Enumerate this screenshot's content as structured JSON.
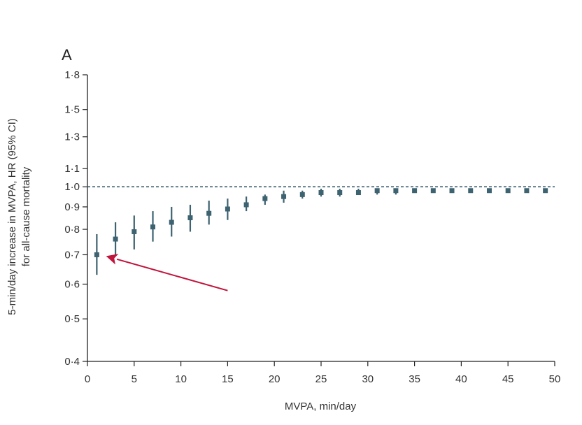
{
  "chart_data": {
    "type": "scatter",
    "panel_label": "A",
    "title": "",
    "xlabel": "MVPA, min/day",
    "ylabel_lines": [
      "5-min/day increase in MVPA, HR (95% CI)",
      "for all-cause mortality"
    ],
    "y_scale": "log",
    "xlim": [
      0,
      50
    ],
    "ylim": [
      0.4,
      1.8
    ],
    "x_ticks": [
      0,
      5,
      10,
      15,
      20,
      25,
      30,
      35,
      40,
      45,
      50
    ],
    "x_tick_labels": [
      "0",
      "5",
      "10",
      "15",
      "20",
      "25",
      "30",
      "35",
      "40",
      "45",
      "50"
    ],
    "y_ticks": [
      0.4,
      0.5,
      0.6,
      0.7,
      0.8,
      0.9,
      1.0,
      1.1,
      1.3,
      1.5,
      1.8
    ],
    "y_tick_labels": [
      "0·4",
      "0·5",
      "0·6",
      "0·7",
      "0·8",
      "0·9",
      "1·0",
      "1·1",
      "1·3",
      "1·5",
      "1·8"
    ],
    "reference_line": {
      "y": 1.0,
      "style": "dashed"
    },
    "series": [
      {
        "name": "HR",
        "points": [
          {
            "x": 1,
            "hr": 0.7,
            "lo": 0.63,
            "hi": 0.78
          },
          {
            "x": 3,
            "hr": 0.76,
            "lo": 0.7,
            "hi": 0.83
          },
          {
            "x": 5,
            "hr": 0.79,
            "lo": 0.72,
            "hi": 0.86
          },
          {
            "x": 7,
            "hr": 0.81,
            "lo": 0.75,
            "hi": 0.88
          },
          {
            "x": 9,
            "hr": 0.83,
            "lo": 0.77,
            "hi": 0.9
          },
          {
            "x": 11,
            "hr": 0.85,
            "lo": 0.79,
            "hi": 0.91
          },
          {
            "x": 13,
            "hr": 0.87,
            "lo": 0.82,
            "hi": 0.93
          },
          {
            "x": 15,
            "hr": 0.89,
            "lo": 0.84,
            "hi": 0.94
          },
          {
            "x": 17,
            "hr": 0.91,
            "lo": 0.88,
            "hi": 0.95
          },
          {
            "x": 19,
            "hr": 0.94,
            "lo": 0.91,
            "hi": 0.96
          },
          {
            "x": 21,
            "hr": 0.95,
            "lo": 0.92,
            "hi": 0.98
          },
          {
            "x": 23,
            "hr": 0.96,
            "lo": 0.94,
            "hi": 0.98
          },
          {
            "x": 25,
            "hr": 0.97,
            "lo": 0.95,
            "hi": 0.99
          },
          {
            "x": 27,
            "hr": 0.97,
            "lo": 0.95,
            "hi": 0.99
          },
          {
            "x": 29,
            "hr": 0.97,
            "lo": 0.96,
            "hi": 0.99
          },
          {
            "x": 31,
            "hr": 0.98,
            "lo": 0.96,
            "hi": 0.99
          },
          {
            "x": 33,
            "hr": 0.98,
            "lo": 0.96,
            "hi": 0.99
          },
          {
            "x": 35,
            "hr": 0.98,
            "lo": 0.97,
            "hi": 0.99
          },
          {
            "x": 37,
            "hr": 0.98,
            "lo": 0.97,
            "hi": 0.99
          },
          {
            "x": 39,
            "hr": 0.98,
            "lo": 0.97,
            "hi": 0.99
          },
          {
            "x": 41,
            "hr": 0.98,
            "lo": 0.97,
            "hi": 0.99
          },
          {
            "x": 43,
            "hr": 0.98,
            "lo": 0.97,
            "hi": 0.99
          },
          {
            "x": 45,
            "hr": 0.98,
            "lo": 0.97,
            "hi": 0.99
          },
          {
            "x": 47,
            "hr": 0.98,
            "lo": 0.97,
            "hi": 0.99
          },
          {
            "x": 49,
            "hr": 0.98,
            "lo": 0.97,
            "hi": 0.99
          }
        ]
      }
    ],
    "annotations": [
      {
        "type": "arrow",
        "from": {
          "x": 15,
          "y": 0.58
        },
        "to": {
          "x": 2,
          "y": 0.695
        }
      }
    ],
    "colors": {
      "marker": "#3d6270",
      "ref_line": "#3d6270",
      "arrow": "#c0143c",
      "axis": "#222222"
    }
  }
}
